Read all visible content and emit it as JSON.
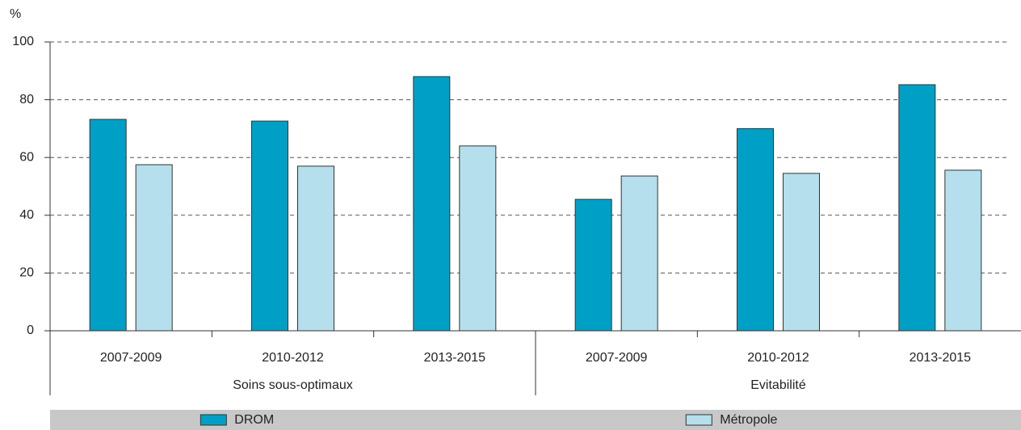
{
  "chart_data": {
    "type": "bar",
    "ylabel": "%",
    "categories": [
      "2007-2009",
      "2010-2012",
      "2013-2015",
      "2007-2009",
      "2010-2012",
      "2013-2015"
    ],
    "groups": [
      "Soins sous-optimaux",
      "Evitabilité"
    ],
    "series": [
      {
        "name": "DROM",
        "color": "#00a0c6",
        "values": [
          73.2,
          72.6,
          88,
          45.5,
          70,
          85.2
        ]
      },
      {
        "name": "Métropole",
        "color": "#b5dfec",
        "values": [
          57.5,
          57,
          64,
          53.6,
          54.5,
          55.6
        ]
      }
    ],
    "ylim": [
      0,
      100
    ],
    "yticks": [
      0,
      20,
      40,
      60,
      80,
      100
    ],
    "grid": true,
    "legend": "bottom"
  }
}
